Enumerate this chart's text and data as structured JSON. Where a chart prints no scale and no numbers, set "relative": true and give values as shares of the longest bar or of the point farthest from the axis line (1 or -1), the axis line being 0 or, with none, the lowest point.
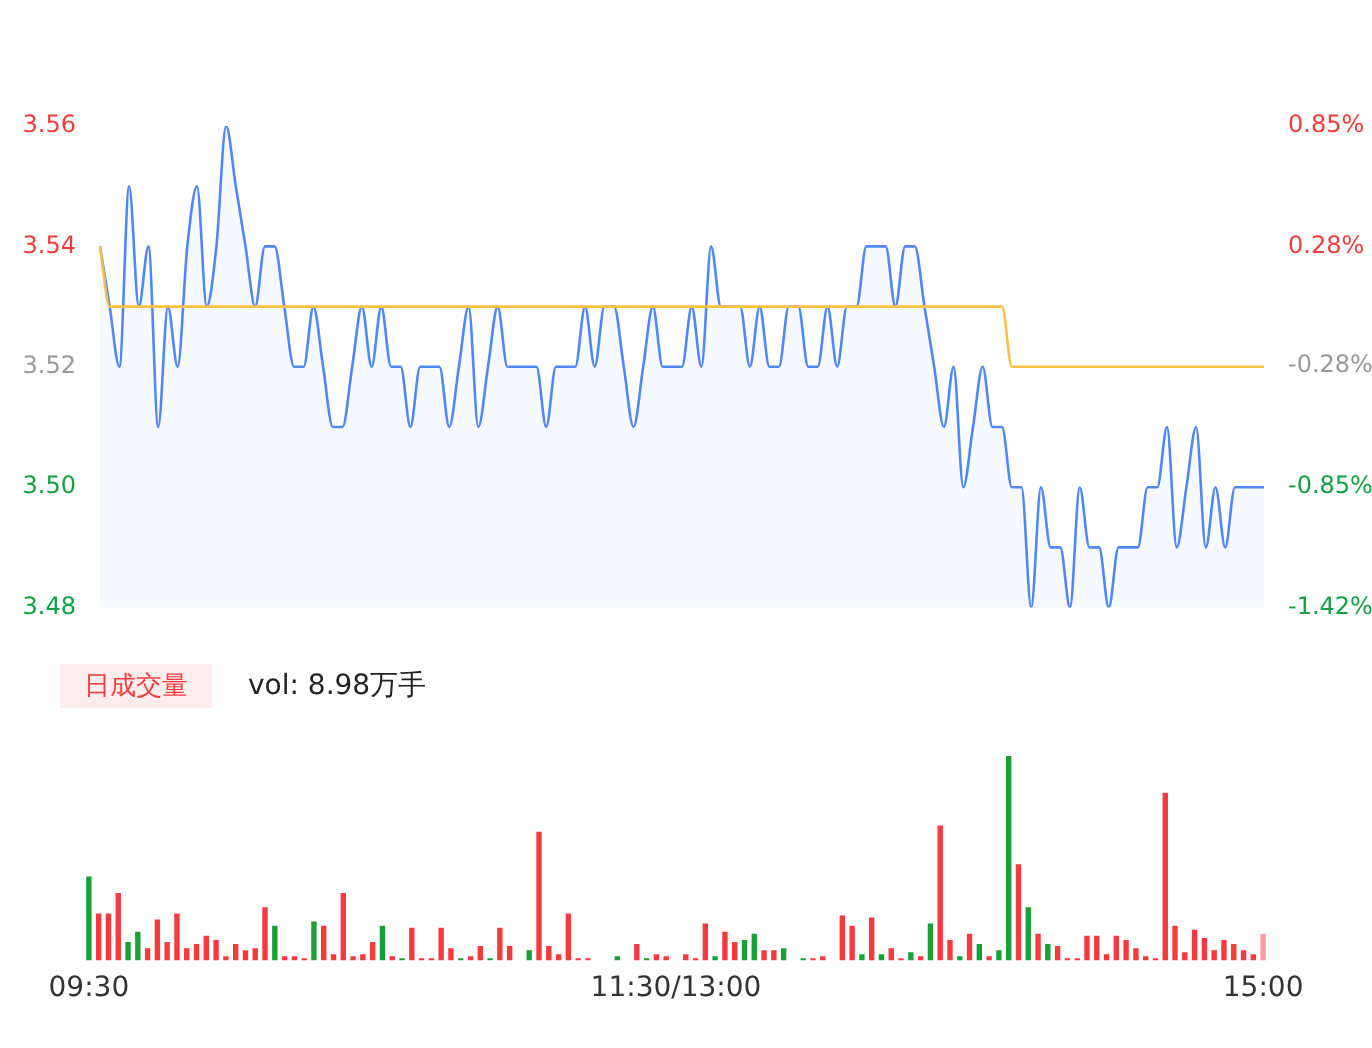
{
  "chart_data": [
    {
      "type": "line",
      "tick_labels": "y",
      "categories": [
        null,
        null,
        null,
        null,
        null,
        null,
        null,
        null,
        null,
        null,
        null,
        null,
        null,
        null,
        null,
        null,
        null,
        null,
        null,
        null,
        null,
        null,
        null,
        null,
        null,
        null,
        null,
        null,
        null,
        null,
        null,
        null,
        null,
        null,
        null,
        null,
        null,
        null,
        null,
        null,
        null,
        null,
        null,
        null,
        null,
        null,
        null,
        null,
        null,
        null,
        null,
        null,
        null,
        null,
        null,
        null,
        null,
        null,
        null,
        null,
        null,
        null,
        null,
        null,
        null,
        null,
        null,
        null,
        null,
        null,
        null,
        null,
        null,
        null,
        null,
        null,
        null,
        null,
        null,
        null,
        null,
        null,
        null,
        null,
        null,
        null,
        null,
        null,
        null,
        null,
        null,
        null,
        null,
        null,
        null,
        null,
        null,
        null,
        null,
        null,
        null,
        null,
        null,
        null,
        null,
        null,
        null,
        null,
        null,
        null,
        null,
        null,
        null,
        null,
        null,
        null,
        null,
        null,
        null,
        null,
        null
      ],
      "ylim": [
        3.48,
        3.56
      ],
      "yticks": [
        {
          "value": 3.48,
          "label": "3.48"
        },
        {
          "value": 3.5,
          "label": "3.50"
        },
        3.52,
        3.54,
        3.56
      ],
      "y2lim": [
        -1.42,
        0.85
      ],
      "y2ticks": [
        {
          "value": -1.42,
          "label": "-1.42%"
        },
        {
          "value": -0.85,
          "label": "-0.85%"
        },
        {
          "value": -0.28,
          "label": "-0.28%"
        },
        {
          "value": 0.28,
          "label": "0.28%"
        },
        {
          "value": 0.85,
          "label": "0.85%"
        }
      ],
      "series": [
        {
          "type": "area",
          "color": "#4f87f6",
          "values": [
            3.54,
            3.53,
            3.52,
            3.55,
            3.53,
            3.54,
            3.51,
            3.53,
            3.52,
            3.54,
            3.55,
            3.53,
            3.54,
            3.56,
            3.55,
            3.54,
            3.53,
            3.54,
            3.54,
            3.53,
            3.52,
            3.52,
            3.53,
            3.52,
            3.51,
            3.51,
            3.52,
            3.53,
            3.52,
            3.53,
            3.52,
            3.52,
            3.51,
            3.52,
            3.52,
            3.52,
            3.51,
            3.52,
            3.53,
            3.51,
            3.52,
            3.53,
            3.52,
            3.52,
            3.52,
            3.52,
            3.51,
            3.52,
            3.52,
            3.52,
            3.53,
            3.52,
            3.53,
            3.53,
            3.52,
            3.51,
            3.52,
            3.53,
            3.52,
            3.52,
            3.52,
            3.53,
            3.52,
            3.54,
            3.53,
            3.53,
            3.53,
            3.52,
            3.53,
            3.52,
            3.52,
            3.53,
            3.53,
            3.52,
            3.52,
            3.53,
            3.52,
            3.53,
            3.53,
            3.54,
            3.54,
            3.54,
            3.53,
            3.54,
            3.54,
            3.53,
            3.52,
            3.51,
            3.52,
            3.5,
            3.51,
            3.52,
            3.51,
            3.51,
            3.5,
            3.5,
            3.48,
            3.5,
            3.49,
            3.49,
            3.48,
            3.5,
            3.49,
            3.49,
            3.48,
            3.49,
            3.49,
            3.49,
            3.5,
            3.5,
            3.51,
            3.49,
            3.5,
            3.51,
            3.49,
            3.5,
            3.49,
            3.5,
            3.5,
            3.5,
            3.5
          ]
        },
        {
          "type": "line",
          "color": "#f7c146",
          "values": [
            3.54,
            3.53,
            3.53,
            3.53,
            3.53,
            3.53,
            3.53,
            3.53,
            3.53,
            3.53,
            3.53,
            3.53,
            3.53,
            3.53,
            3.53,
            3.53,
            3.53,
            3.53,
            3.53,
            3.53,
            3.53,
            3.53,
            3.53,
            3.53,
            3.53,
            3.53,
            3.53,
            3.53,
            3.53,
            3.53,
            3.53,
            3.53,
            3.53,
            3.53,
            3.53,
            3.53,
            3.53,
            3.53,
            3.53,
            3.53,
            3.53,
            3.53,
            3.53,
            3.53,
            3.53,
            3.53,
            3.53,
            3.53,
            3.53,
            3.53,
            3.53,
            3.53,
            3.53,
            3.53,
            3.53,
            3.53,
            3.53,
            3.53,
            3.53,
            3.53,
            3.53,
            3.53,
            3.53,
            3.53,
            3.53,
            3.53,
            3.53,
            3.53,
            3.53,
            3.53,
            3.53,
            3.53,
            3.53,
            3.53,
            3.53,
            3.53,
            3.53,
            3.53,
            3.53,
            3.53,
            3.53,
            3.53,
            3.53,
            3.53,
            3.53,
            3.53,
            3.53,
            3.53,
            3.53,
            3.53,
            3.53,
            3.53,
            3.53,
            3.53,
            3.52,
            3.52,
            3.52,
            3.52,
            3.52,
            3.52,
            3.52,
            3.52,
            3.52,
            3.52,
            3.52,
            3.52,
            3.52,
            3.52,
            3.52,
            3.52,
            3.52,
            3.52,
            3.52,
            3.52,
            3.52,
            3.52,
            3.52,
            3.52,
            3.52,
            3.52,
            3.52
          ]
        }
      ]
    },
    {
      "type": "bar",
      "relative": true,
      "annotations": [
        "日成交量",
        "vol: 8.98万手"
      ],
      "categories": [
        "09:30",
        null,
        null,
        null,
        null,
        null,
        null,
        null,
        null,
        null,
        null,
        null,
        null,
        null,
        null,
        null,
        null,
        null,
        null,
        null,
        null,
        null,
        null,
        null,
        null,
        null,
        null,
        null,
        null,
        null,
        null,
        null,
        null,
        null,
        null,
        null,
        null,
        null,
        null,
        null,
        null,
        null,
        null,
        null,
        null,
        null,
        null,
        null,
        null,
        null,
        null,
        null,
        null,
        null,
        null,
        null,
        null,
        null,
        null,
        null,
        "11:30/13:00",
        null,
        null,
        null,
        null,
        null,
        null,
        null,
        null,
        null,
        null,
        null,
        null,
        null,
        null,
        null,
        null,
        null,
        null,
        null,
        null,
        null,
        null,
        null,
        null,
        null,
        null,
        null,
        null,
        null,
        null,
        null,
        null,
        null,
        null,
        null,
        null,
        null,
        null,
        null,
        null,
        null,
        null,
        null,
        null,
        null,
        null,
        null,
        null,
        null,
        null,
        null,
        null,
        null,
        null,
        null,
        null,
        null,
        null,
        null,
        "15:00"
      ],
      "values": [
        0.41,
        0.23,
        0.23,
        0.33,
        0.09,
        0.14,
        0.06,
        0.2,
        0.09,
        0.23,
        0.06,
        0.08,
        0.12,
        0.1,
        0.02,
        0.08,
        0.05,
        0.06,
        0.26,
        0.17,
        0.02,
        0.02,
        0.01,
        0.19,
        0.17,
        0.03,
        0.33,
        0.02,
        0.03,
        0.09,
        0.17,
        0.02,
        0.01,
        0.16,
        0.01,
        0.01,
        0.16,
        0.06,
        0.01,
        0.02,
        0.07,
        0.01,
        0.16,
        0.07,
        0,
        0.05,
        0.63,
        0.07,
        0.03,
        0.23,
        0.01,
        0.01,
        0,
        0,
        0.02,
        0,
        0.08,
        0.01,
        0.03,
        0.02,
        0,
        0.03,
        0.01,
        0.18,
        0.02,
        0.14,
        0.09,
        0.1,
        0.13,
        0.05,
        0.05,
        0.06,
        0,
        0.01,
        0.01,
        0.02,
        0,
        0.22,
        0.17,
        0.03,
        0.21,
        0.03,
        0.06,
        0.01,
        0.04,
        0.02,
        0.18,
        0.66,
        0.1,
        0.02,
        0.13,
        0.08,
        0.02,
        0.05,
        1,
        0.47,
        0.26,
        0.13,
        0.08,
        0.07,
        0.01,
        0.01,
        0.12,
        0.12,
        0.03,
        0.12,
        0.1,
        0.06,
        0.02,
        0.01,
        0.82,
        0.17,
        0.04,
        0.15,
        0.11,
        0.05,
        0.1,
        0.08,
        0.05,
        0.03,
        0.13
      ],
      "colors": [
        "#18a236",
        "#f5393c",
        "#f5393c",
        "#f5393c",
        "#18a236",
        "#18a236",
        "#f5393c",
        "#f5393c",
        "#f5393c",
        "#f5393c",
        "#f5393c",
        "#f5393c",
        "#f5393c",
        "#f5393c",
        "#f5393c",
        "#f5393c",
        "#f5393c",
        "#f5393c",
        "#f5393c",
        "#18a236",
        "#f5393c",
        "#f5393c",
        "#f5393c",
        "#18a236",
        "#f5393c",
        "#f5393c",
        "#f5393c",
        "#f5393c",
        "#f5393c",
        "#f5393c",
        "#18a236",
        "#f5393c",
        "#18a236",
        "#f5393c",
        "#f5393c",
        "#f5393c",
        "#f5393c",
        "#f5393c",
        "#18a236",
        "#f5393c",
        "#f5393c",
        "#18a236",
        "#f5393c",
        "#f5393c",
        "#f5393c",
        "#18a236",
        "#f5393c",
        "#f5393c",
        "#f5393c",
        "#f5393c",
        "#f5393c",
        "#f5393c",
        "#f5393c",
        "#f5393c",
        "#18a236",
        "#f5393c",
        "#f5393c",
        "#18a236",
        "#f5393c",
        "#f5393c",
        "#f5393c",
        "#f5393c",
        "#f5393c",
        "#f5393c",
        "#18a236",
        "#f5393c",
        "#f5393c",
        "#18a236",
        "#18a236",
        "#f5393c",
        "#f5393c",
        "#18a236",
        "#f5393c",
        "#18a236",
        "#f5393c",
        "#f5393c",
        "#f5393c",
        "#f5393c",
        "#f5393c",
        "#18a236",
        "#f5393c",
        "#18a236",
        "#f5393c",
        "#f5393c",
        "#18a236",
        "#f5393c",
        "#18a236",
        "#f5393c",
        "#f5393c",
        "#18a236",
        "#f5393c",
        "#18a236",
        "#f5393c",
        "#18a236",
        "#18a236",
        "#f5393c",
        "#18a236",
        "#f5393c",
        "#18a236",
        "#f5393c",
        "#f5393c",
        "#f5393c",
        "#f5393c",
        "#f5393c",
        "#f5393c",
        "#f5393c",
        "#f5393c",
        "#f5393c",
        "#f5393c",
        "#f5393c",
        "#f5393c",
        "#f5393c",
        "#f5393c",
        "#f5393c",
        "#f5393c",
        "#f5393c",
        "#f5393c",
        "#f5393c",
        "#f5393c",
        "#f5393c",
        "#ff9e9e"
      ]
    }
  ]
}
